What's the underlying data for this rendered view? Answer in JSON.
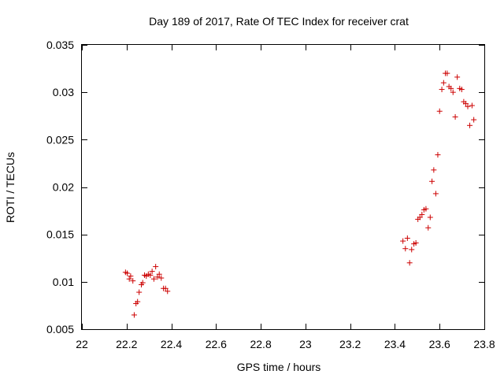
{
  "chart_data": {
    "type": "scatter",
    "title": "Day 189 of 2017, Rate Of TEC Index for receiver crat",
    "xlabel": "GPS time / hours",
    "ylabel": "ROTI / TECUs",
    "xlim": [
      22,
      23.8
    ],
    "ylim": [
      0.005,
      0.035
    ],
    "x_ticks": [
      22,
      22.2,
      22.4,
      22.6,
      22.8,
      23,
      23.2,
      23.4,
      23.6,
      23.8
    ],
    "x_tick_labels": [
      "22",
      "22.2",
      "22.4",
      "22.6",
      "22.8",
      "23",
      "23.2",
      "23.4",
      "23.6",
      "23.8"
    ],
    "y_ticks": [
      0.005,
      0.01,
      0.015,
      0.02,
      0.025,
      0.03,
      0.035
    ],
    "y_tick_labels": [
      "0.005",
      "0.01",
      "0.015",
      "0.02",
      "0.025",
      "0.03",
      "0.035"
    ],
    "grid": false,
    "series": [
      {
        "name": "ROTI",
        "marker": "+",
        "color": "#cc0000",
        "x": [
          22.195,
          22.203,
          22.212,
          22.218,
          22.228,
          22.234,
          22.242,
          22.249,
          22.256,
          22.266,
          22.272,
          22.28,
          22.288,
          22.297,
          22.306,
          22.314,
          22.322,
          22.33,
          22.338,
          22.346,
          22.355,
          22.365,
          22.374,
          22.383,
          23.436,
          23.447,
          23.456,
          23.466,
          23.475,
          23.485,
          23.494,
          23.503,
          23.512,
          23.521,
          23.53,
          23.539,
          23.549,
          23.558,
          23.566,
          23.574,
          23.583,
          23.592,
          23.6,
          23.61,
          23.618,
          23.626,
          23.634,
          23.642,
          23.651,
          23.66,
          23.67,
          23.679,
          23.69,
          23.699,
          23.708,
          23.717,
          23.726,
          23.735,
          23.745,
          23.753
        ],
        "y": [
          0.011,
          0.0109,
          0.0103,
          0.0106,
          0.0101,
          0.0065,
          0.0077,
          0.0079,
          0.0089,
          0.0097,
          0.0099,
          0.0107,
          0.0106,
          0.0108,
          0.0107,
          0.0111,
          0.0103,
          0.0116,
          0.0105,
          0.0108,
          0.0104,
          0.0093,
          0.0093,
          0.009,
          0.0143,
          0.0135,
          0.0146,
          0.012,
          0.0134,
          0.014,
          0.0141,
          0.0166,
          0.0168,
          0.0171,
          0.0176,
          0.0177,
          0.0157,
          0.0168,
          0.0206,
          0.0218,
          0.0193,
          0.0234,
          0.028,
          0.0303,
          0.031,
          0.032,
          0.032,
          0.0306,
          0.0304,
          0.03,
          0.0274,
          0.0316,
          0.0304,
          0.0303,
          0.029,
          0.0288,
          0.0285,
          0.0265,
          0.0286,
          0.0271
        ]
      }
    ]
  }
}
